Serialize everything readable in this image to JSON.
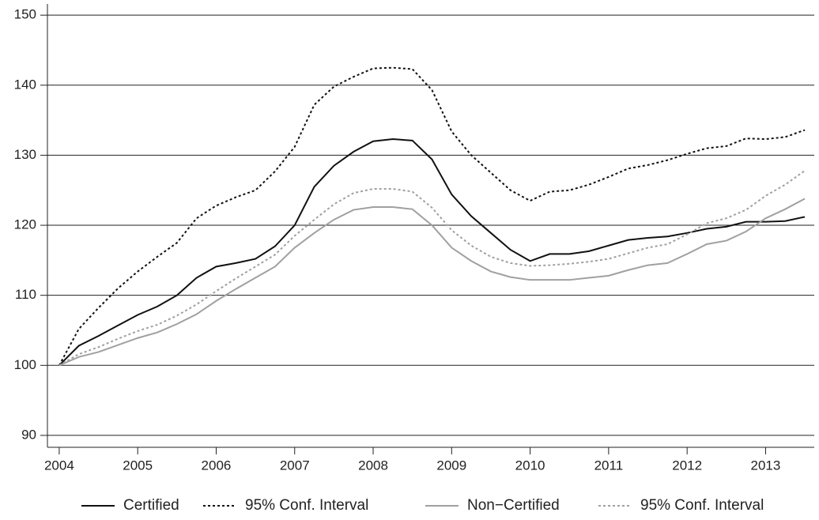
{
  "chart_data": {
    "type": "line",
    "x": [
      2004,
      2004.25,
      2004.5,
      2004.75,
      2005,
      2005.25,
      2005.5,
      2005.75,
      2006,
      2006.25,
      2006.5,
      2006.75,
      2007,
      2007.25,
      2007.5,
      2007.75,
      2008,
      2008.25,
      2008.5,
      2008.75,
      2009,
      2009.25,
      2009.5,
      2009.75,
      2010,
      2010.25,
      2010.5,
      2010.75,
      2011,
      2011.25,
      2011.5,
      2011.75,
      2012,
      2012.25,
      2012.5,
      2012.75,
      2013,
      2013.25,
      2013.5
    ],
    "series": [
      {
        "name": "Certified",
        "color": "#111111",
        "dash": false,
        "values": [
          100,
          102.8,
          104.2,
          105.7,
          107.2,
          108.4,
          110,
          112.5,
          114.1,
          114.6,
          115.2,
          117,
          120,
          125.5,
          128.5,
          130.5,
          132,
          132.3,
          132.1,
          129.4,
          124.4,
          121.3,
          118.9,
          116.5,
          114.9,
          115.9,
          115.9,
          116.3,
          117.1,
          117.9,
          118.2,
          118.4,
          118.9,
          119.5,
          119.8,
          120.5,
          120.5,
          120.6,
          121.2
        ]
      },
      {
        "name": "95% Conf. Interval",
        "color": "#111111",
        "dash": true,
        "values": [
          100,
          105.2,
          108.2,
          111,
          113.4,
          115.5,
          117.5,
          121,
          122.8,
          124,
          125,
          127.7,
          131.2,
          137.2,
          139.8,
          141.2,
          142.4,
          142.5,
          142.3,
          139.3,
          133.4,
          130,
          127.5,
          125,
          123.5,
          124.8,
          125,
          125.8,
          126.9,
          128.1,
          128.6,
          129.3,
          130.2,
          131,
          131.3,
          132.4,
          132.3,
          132.6,
          133.6
        ]
      },
      {
        "name": "Non−Certified",
        "color": "#a0a0a0",
        "dash": false,
        "values": [
          100,
          101.2,
          101.9,
          102.9,
          103.9,
          104.7,
          105.9,
          107.3,
          109.2,
          110.9,
          112.5,
          114.1,
          116.8,
          118.9,
          120.8,
          122.2,
          122.6,
          122.6,
          122.3,
          120,
          116.8,
          114.9,
          113.4,
          112.6,
          112.2,
          112.2,
          112.2,
          112.5,
          112.8,
          113.6,
          114.3,
          114.6,
          115.9,
          117.3,
          117.8,
          119.1,
          121,
          122.3,
          123.8
        ]
      },
      {
        "name": "95% Conf. Interval",
        "color": "#a0a0a0",
        "dash": true,
        "values": [
          100,
          101.6,
          102.6,
          103.8,
          104.9,
          105.8,
          107.1,
          108.7,
          110.6,
          112.4,
          114.1,
          115.8,
          118.5,
          120.8,
          123,
          124.6,
          125.2,
          125.2,
          124.8,
          122.5,
          119.3,
          117.1,
          115.5,
          114.6,
          114.2,
          114.3,
          114.5,
          114.8,
          115.2,
          116,
          116.8,
          117.3,
          118.7,
          120.3,
          121,
          122.2,
          124.2,
          125.8,
          127.8
        ]
      }
    ],
    "lower_band_values": null,
    "xlim": [
      2003.85,
      2013.62
    ],
    "xticks": [
      2004,
      2005,
      2006,
      2007,
      2008,
      2009,
      2010,
      2011,
      2012,
      2013
    ],
    "ylim": [
      88.3,
      151.6
    ],
    "yticks": [
      90,
      100,
      110,
      120,
      130,
      140,
      150
    ],
    "grid": true,
    "legend": "bottom"
  }
}
